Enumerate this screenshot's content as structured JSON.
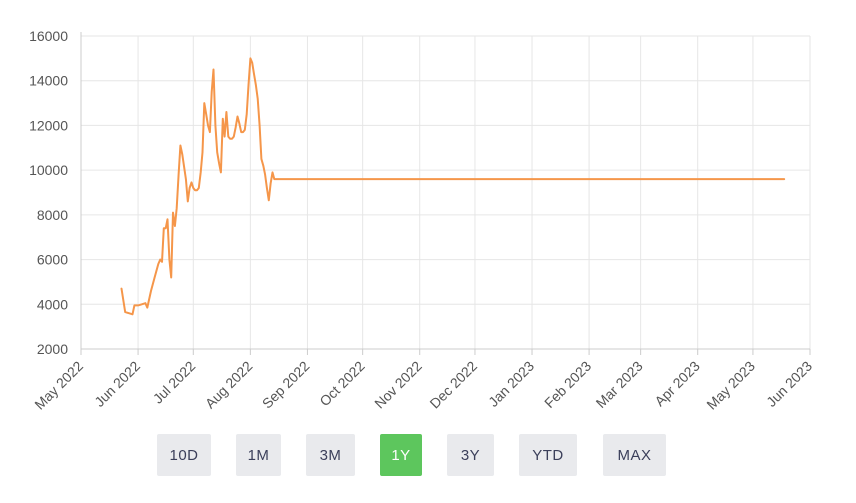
{
  "chart_data": {
    "type": "line",
    "title": "",
    "xlabel": "",
    "ylabel": "",
    "ylim": [
      2000,
      16000
    ],
    "xlim": [
      "2022-05-01",
      "2023-06-01"
    ],
    "yticks": [
      "2000",
      "4000",
      "6000",
      "8000",
      "10000",
      "12000",
      "14000",
      "16000"
    ],
    "xticks": [
      "May 2022",
      "Jun 2022",
      "Jul 2022",
      "Aug 2022",
      "Sep 2022",
      "Oct 2022",
      "Nov 2022",
      "Dec 2022",
      "Jan 2023",
      "Feb 2023",
      "Mar 2023",
      "Apr 2023",
      "May 2023",
      "Jun 2023"
    ],
    "grid": true,
    "series": [
      {
        "color": "#f5964a",
        "points": [
          [
            "2022-05-23",
            4700
          ],
          [
            "2022-05-25",
            3650
          ],
          [
            "2022-05-27",
            3600
          ],
          [
            "2022-05-29",
            3550
          ],
          [
            "2022-05-30",
            3950
          ],
          [
            "2022-06-01",
            3950
          ],
          [
            "2022-06-03",
            4000
          ],
          [
            "2022-06-05",
            4050
          ],
          [
            "2022-06-06",
            3850
          ],
          [
            "2022-06-08",
            4600
          ],
          [
            "2022-06-10",
            5200
          ],
          [
            "2022-06-12",
            5800
          ],
          [
            "2022-06-13",
            6000
          ],
          [
            "2022-06-14",
            5900
          ],
          [
            "2022-06-15",
            7400
          ],
          [
            "2022-06-16",
            7400
          ],
          [
            "2022-06-17",
            7800
          ],
          [
            "2022-06-18",
            6000
          ],
          [
            "2022-06-19",
            5200
          ],
          [
            "2022-06-20",
            8100
          ],
          [
            "2022-06-21",
            7500
          ],
          [
            "2022-06-22",
            8300
          ],
          [
            "2022-06-23",
            9800
          ],
          [
            "2022-06-24",
            11100
          ],
          [
            "2022-06-25",
            10700
          ],
          [
            "2022-06-27",
            9600
          ],
          [
            "2022-06-28",
            8600
          ],
          [
            "2022-06-29",
            9200
          ],
          [
            "2022-06-30",
            9450
          ],
          [
            "2022-07-01",
            9200
          ],
          [
            "2022-07-02",
            9100
          ],
          [
            "2022-07-03",
            9100
          ],
          [
            "2022-07-04",
            9200
          ],
          [
            "2022-07-05",
            9900
          ],
          [
            "2022-07-06",
            10800
          ],
          [
            "2022-07-07",
            13000
          ],
          [
            "2022-07-08",
            12500
          ],
          [
            "2022-07-09",
            12000
          ],
          [
            "2022-07-10",
            11700
          ],
          [
            "2022-07-11",
            13500
          ],
          [
            "2022-07-12",
            14500
          ],
          [
            "2022-07-13",
            12000
          ],
          [
            "2022-07-14",
            10800
          ],
          [
            "2022-07-15",
            10300
          ],
          [
            "2022-07-16",
            9900
          ],
          [
            "2022-07-17",
            12300
          ],
          [
            "2022-07-18",
            11500
          ],
          [
            "2022-07-19",
            12600
          ],
          [
            "2022-07-20",
            11500
          ],
          [
            "2022-07-21",
            11400
          ],
          [
            "2022-07-22",
            11400
          ],
          [
            "2022-07-23",
            11500
          ],
          [
            "2022-07-24",
            11900
          ],
          [
            "2022-07-25",
            12400
          ],
          [
            "2022-07-26",
            12100
          ],
          [
            "2022-07-27",
            11700
          ],
          [
            "2022-07-28",
            11700
          ],
          [
            "2022-07-29",
            11800
          ],
          [
            "2022-07-30",
            12500
          ],
          [
            "2022-07-31",
            13800
          ],
          [
            "2022-08-01",
            15000
          ],
          [
            "2022-08-02",
            14800
          ],
          [
            "2022-08-03",
            14300
          ],
          [
            "2022-08-04",
            13800
          ],
          [
            "2022-08-05",
            13200
          ],
          [
            "2022-08-06",
            12000
          ],
          [
            "2022-08-07",
            10500
          ],
          [
            "2022-08-08",
            10200
          ],
          [
            "2022-08-09",
            9800
          ],
          [
            "2022-08-10",
            9200
          ],
          [
            "2022-08-11",
            8650
          ],
          [
            "2022-08-12",
            9400
          ],
          [
            "2022-08-13",
            9900
          ],
          [
            "2022-08-14",
            9600
          ],
          [
            "2023-05-18",
            9600
          ]
        ]
      }
    ]
  },
  "range_selector": {
    "buttons": [
      {
        "label": "10D",
        "active": false
      },
      {
        "label": "1M",
        "active": false
      },
      {
        "label": "3M",
        "active": false
      },
      {
        "label": "1Y",
        "active": true
      },
      {
        "label": "3Y",
        "active": false
      },
      {
        "label": "YTD",
        "active": false
      },
      {
        "label": "MAX",
        "active": false
      }
    ],
    "active_color": "#5dc65d"
  }
}
